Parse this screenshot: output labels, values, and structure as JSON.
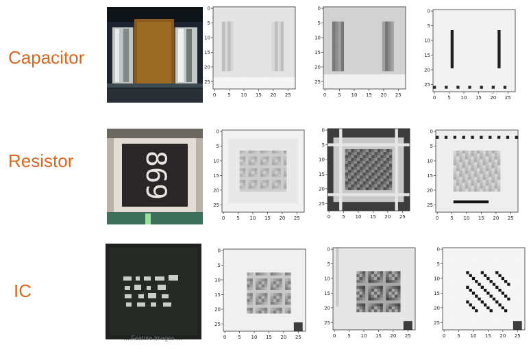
{
  "rows": [
    {
      "label": "Capacitor"
    },
    {
      "label": "Resistor",
      "marking": "869"
    },
    {
      "label": "IC"
    }
  ],
  "axis_ticks": {
    "x": [
      "0",
      "5",
      "10",
      "15",
      "20",
      "25"
    ],
    "y": [
      "0",
      "5",
      "10",
      "15",
      "20",
      "25"
    ]
  },
  "caption": "… Feature Images …",
  "colors": {
    "label": "#d9671f"
  }
}
